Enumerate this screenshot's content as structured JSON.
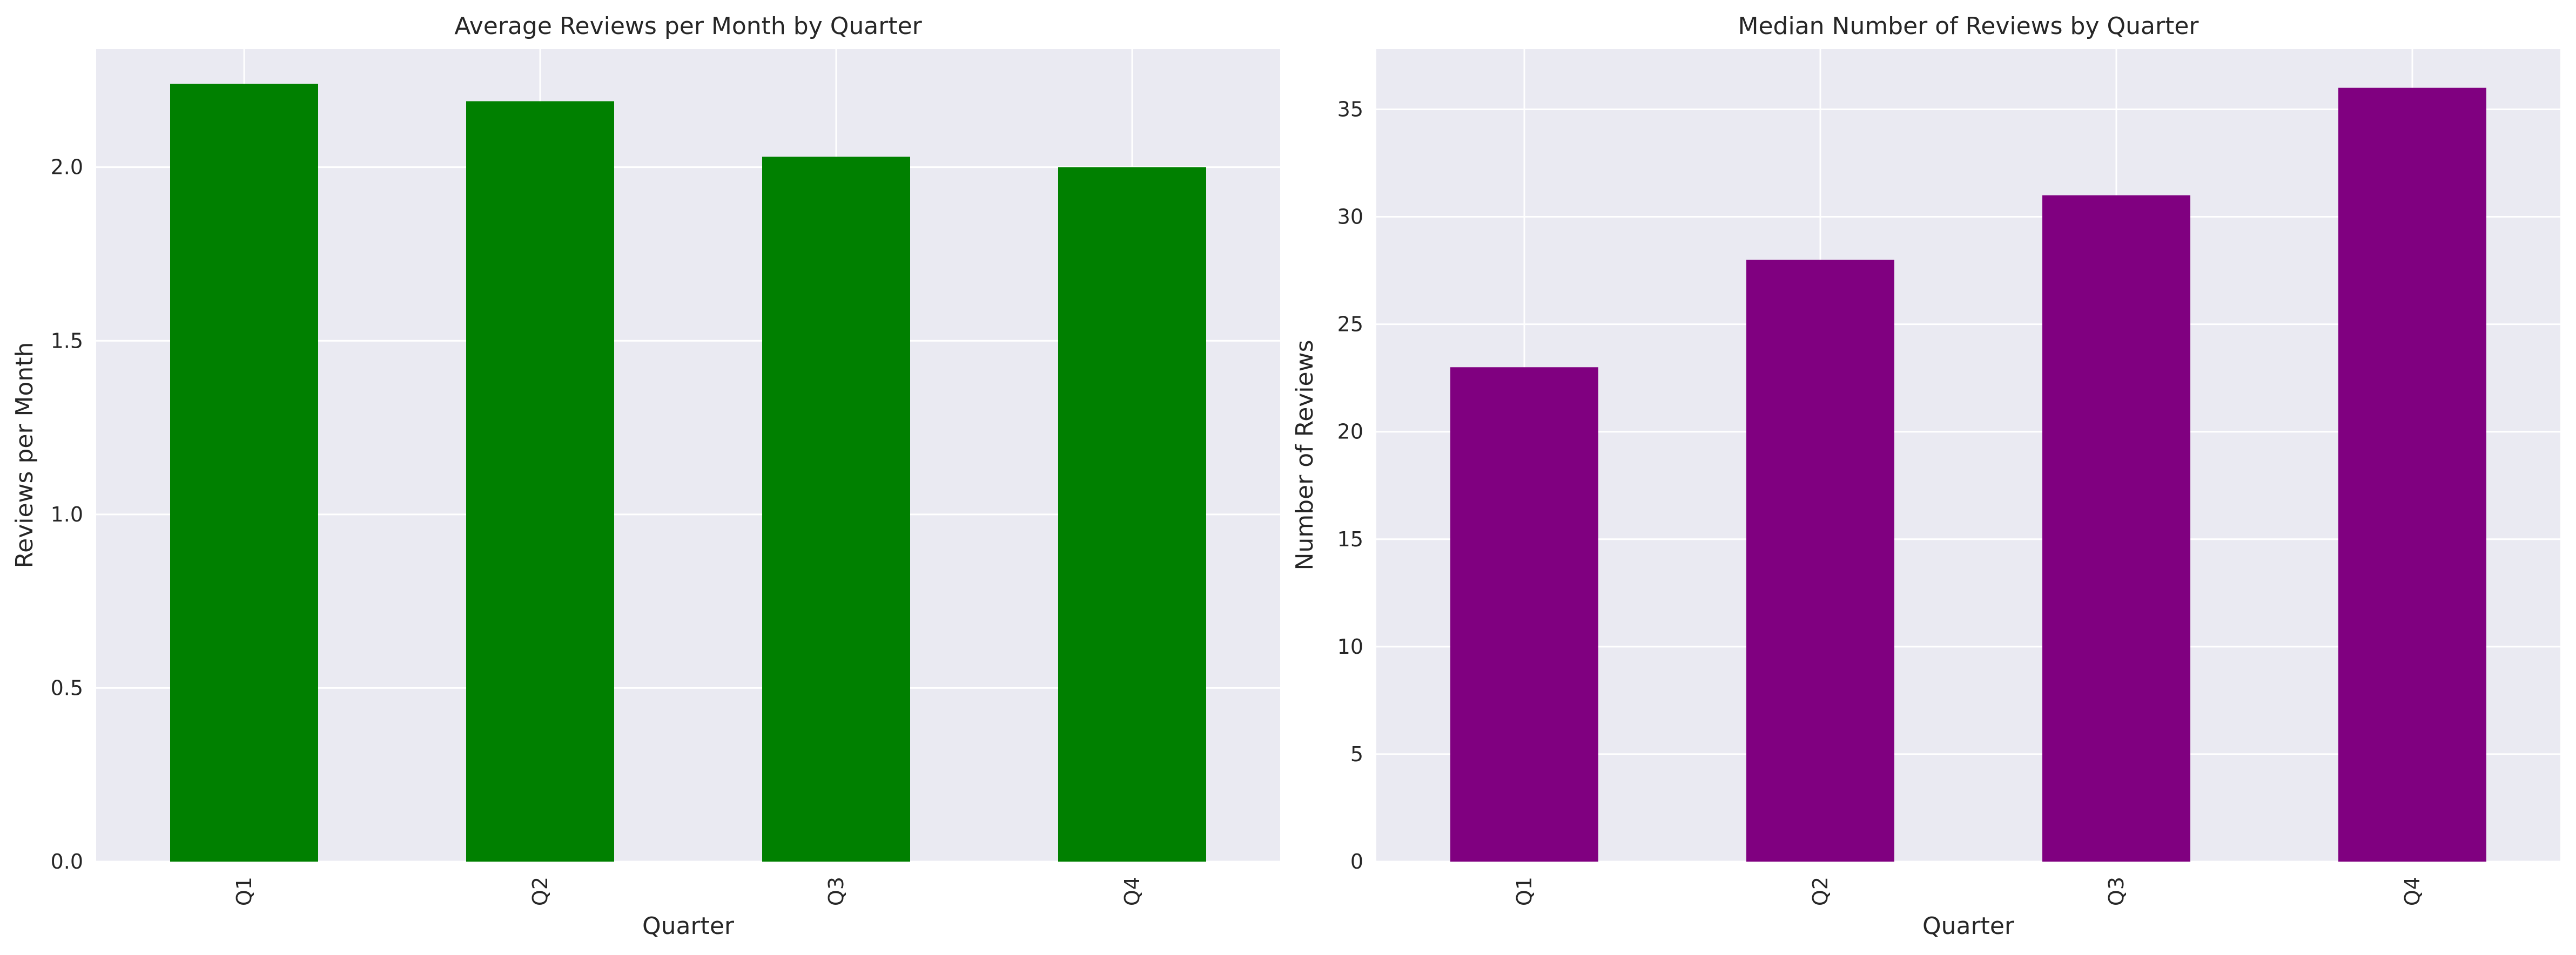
{
  "chart_data": [
    {
      "type": "bar",
      "title": "Average Reviews per Month by Quarter",
      "xlabel": "Quarter",
      "ylabel": "Reviews per Month",
      "categories": [
        "Q1",
        "Q2",
        "Q3",
        "Q4"
      ],
      "values": [
        2.24,
        2.19,
        2.03,
        2.0
      ],
      "ylim": [
        0,
        2.34
      ],
      "yticks": [
        0.0,
        0.5,
        1.0,
        1.5,
        2.0
      ],
      "ytick_labels": [
        "0.0",
        "0.5",
        "1.0",
        "1.5",
        "2.0"
      ],
      "bar_color": "#008000",
      "plot_background": "#EAEAF2",
      "grid": true,
      "grid_color": "#FFFFFF"
    },
    {
      "type": "bar",
      "title": "Median Number of Reviews by Quarter",
      "xlabel": "Quarter",
      "ylabel": "Number of Reviews",
      "categories": [
        "Q1",
        "Q2",
        "Q3",
        "Q4"
      ],
      "values": [
        23,
        28,
        31,
        36
      ],
      "ylim": [
        0,
        37.8
      ],
      "yticks": [
        0,
        5,
        10,
        15,
        20,
        25,
        30,
        35
      ],
      "ytick_labels": [
        "0",
        "5",
        "10",
        "15",
        "20",
        "25",
        "30",
        "35"
      ],
      "bar_color": "#800080",
      "plot_background": "#EAEAF2",
      "grid": true,
      "grid_color": "#FFFFFF"
    }
  ]
}
